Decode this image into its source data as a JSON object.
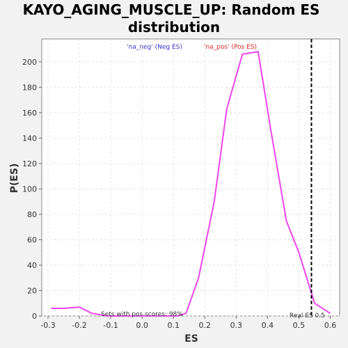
{
  "chart_data": {
    "type": "line",
    "title_line1": "KAYO_AGING_MUSCLE_UP: Random ES",
    "title_line2": "distribution",
    "xlabel": "ES",
    "ylabel": "P(ES)",
    "xlim": [
      -0.32,
      0.63
    ],
    "ylim": [
      0,
      218
    ],
    "x_ticks": [
      -0.3,
      -0.2,
      -0.1,
      0.0,
      0.1,
      0.2,
      0.3,
      0.4,
      0.5,
      0.6
    ],
    "x_tick_labels": [
      "-0.3",
      "-0.2",
      "-0.1",
      "0.0",
      "0.1",
      "0.2",
      "0.3",
      "0.4",
      "0.5",
      "0.6"
    ],
    "y_ticks": [
      0,
      20,
      40,
      60,
      80,
      100,
      120,
      140,
      160,
      180,
      200
    ],
    "y_tick_labels": [
      "0",
      "20",
      "40",
      "60",
      "80",
      "100",
      "120",
      "140",
      "160",
      "180",
      "200"
    ],
    "grid": true,
    "legend": [
      {
        "label": "'na_neg' (Neg ES)",
        "color": "#3333cc"
      },
      {
        "label": "'na_pos' (Pos ES)",
        "color": "#dd2222"
      }
    ],
    "series": [
      {
        "color": "#ee44ee",
        "x": [
          -0.29,
          -0.25,
          -0.2,
          -0.16,
          -0.11,
          -0.07,
          -0.02,
          0.03,
          0.07,
          0.11,
          0.14,
          0.18,
          0.23,
          0.27,
          0.32,
          0.37,
          0.41,
          0.46,
          0.5,
          0.55,
          0.6
        ],
        "y": [
          6,
          6,
          7,
          2,
          0,
          0,
          0,
          0,
          0,
          0,
          2,
          30,
          90,
          163,
          206,
          208,
          147,
          75,
          50,
          10,
          2
        ]
      }
    ],
    "real_es": {
      "x": 0.54,
      "label": "Real ES 0.5",
      "color": "#000000"
    },
    "annotation": "Sets with pos scores: 98%"
  }
}
